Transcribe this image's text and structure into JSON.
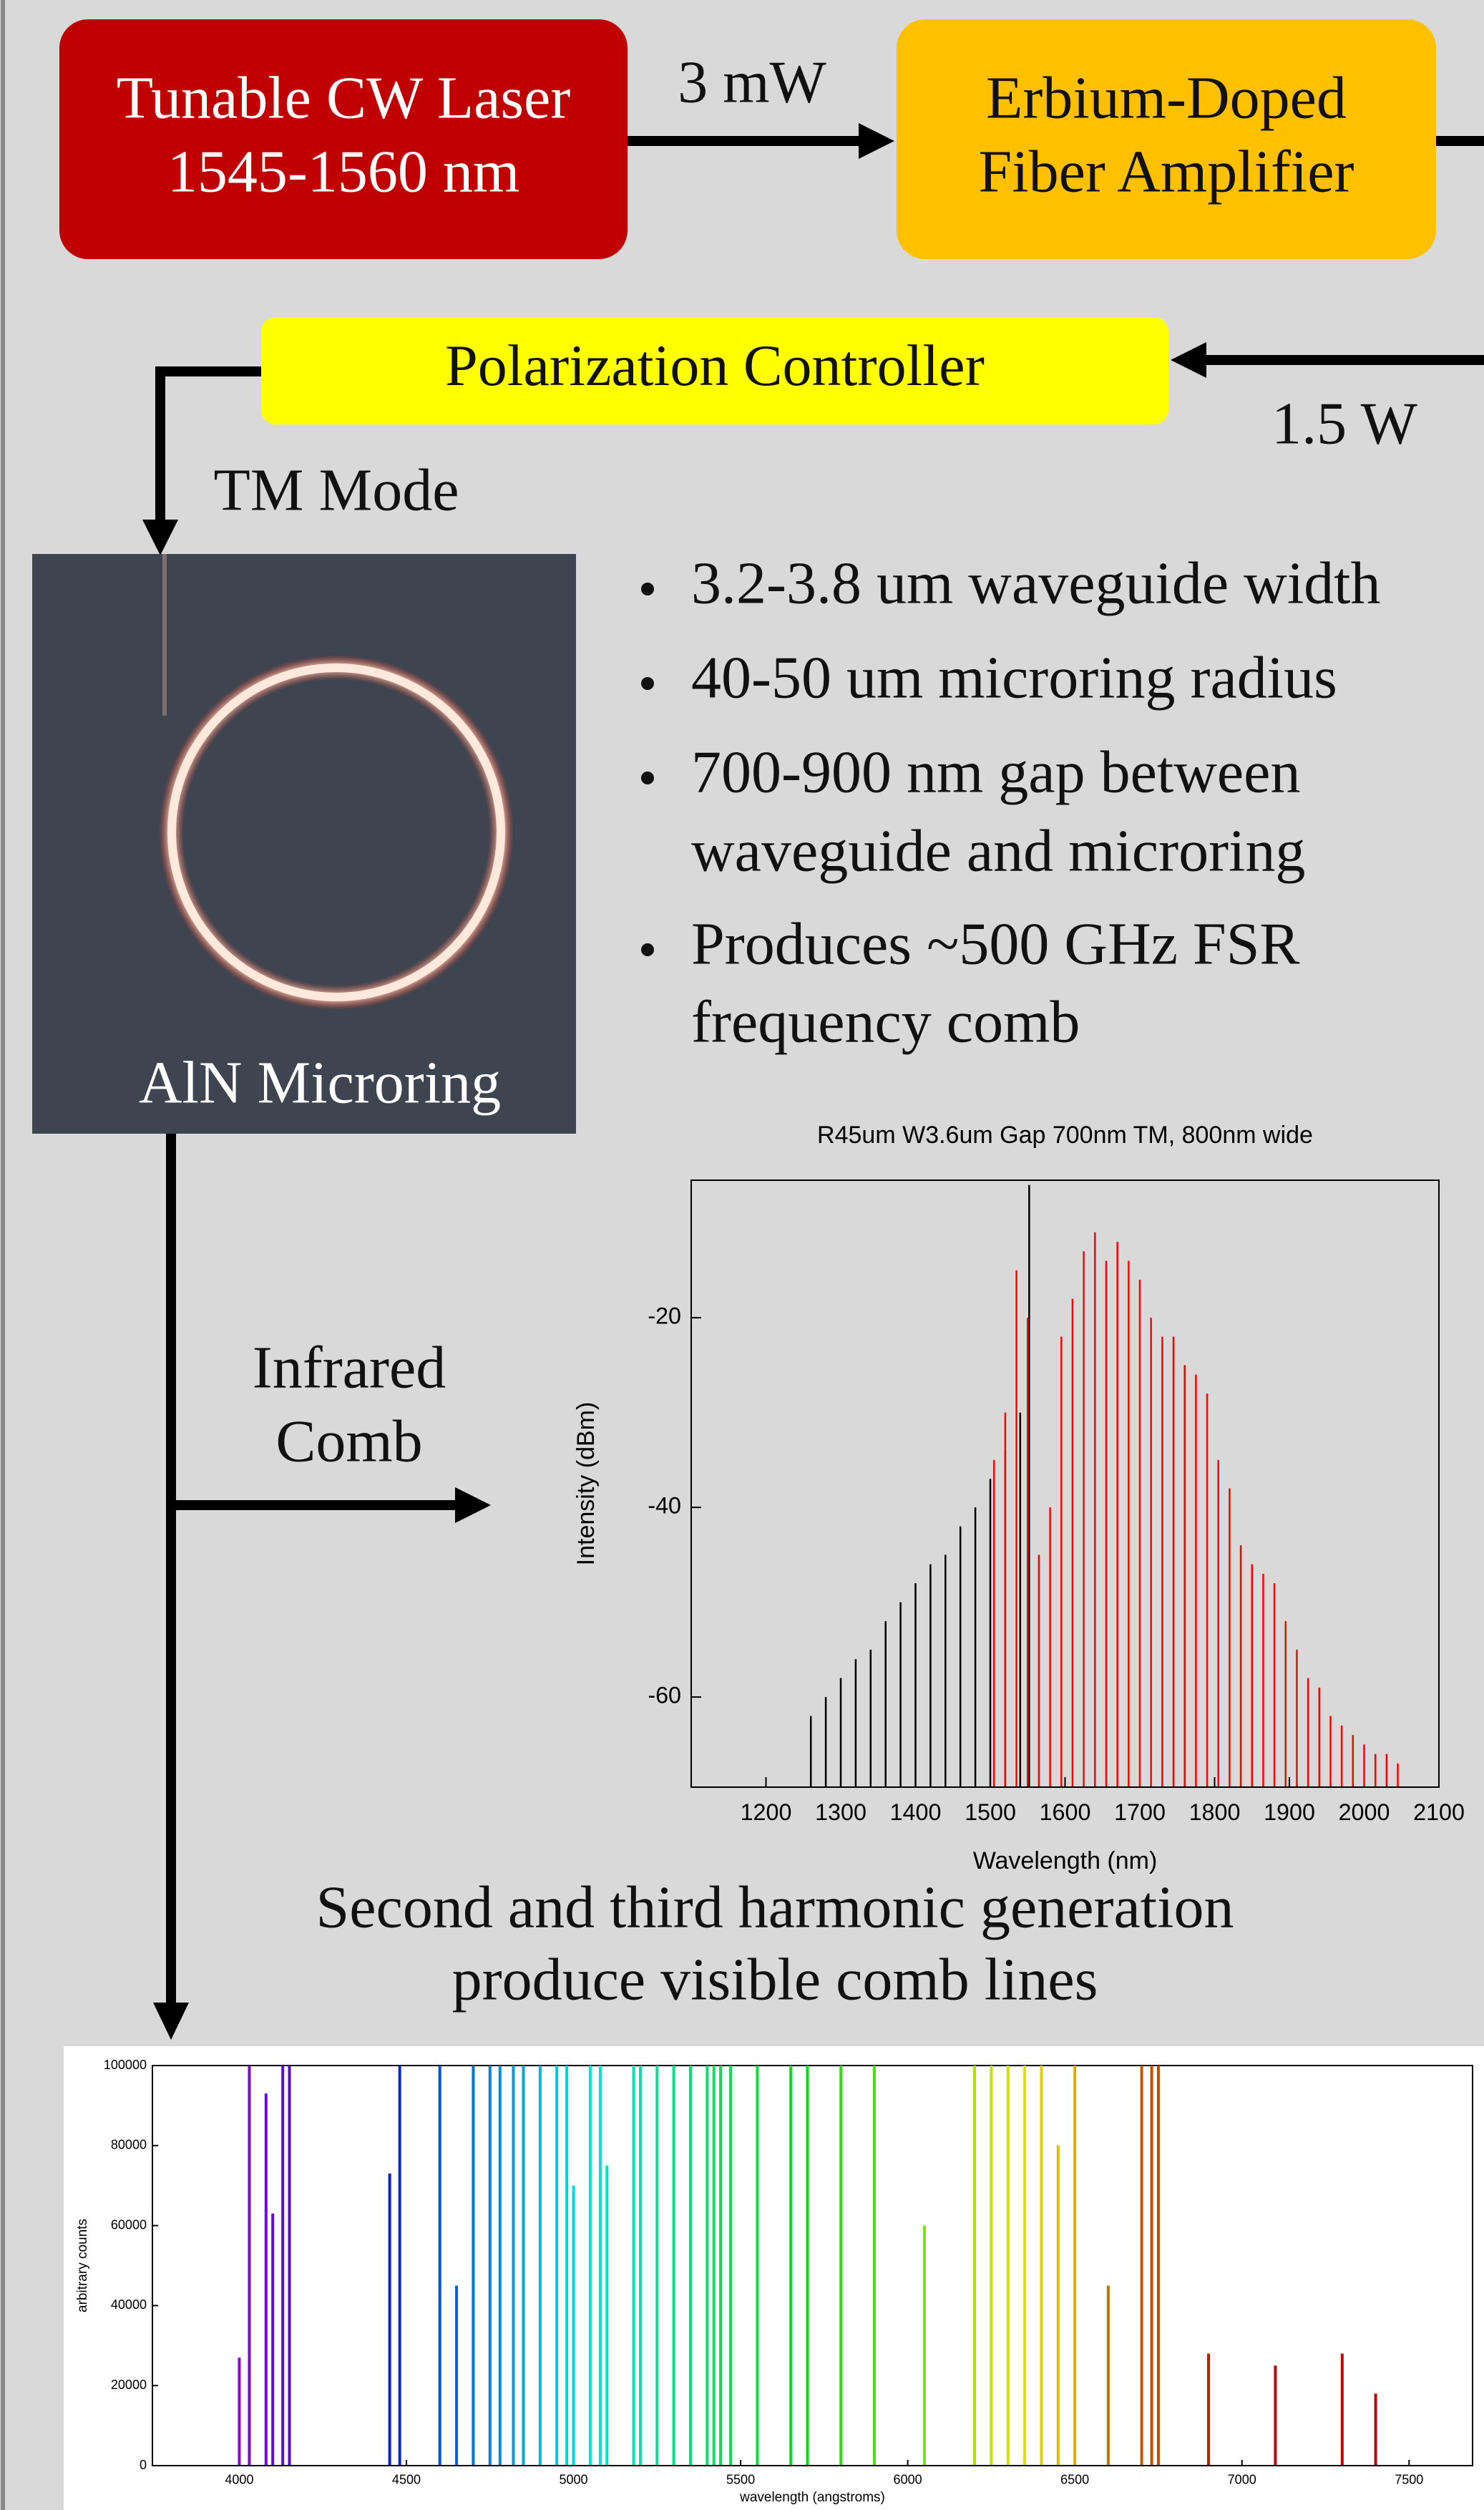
{
  "diagram": {
    "laser": [
      "Tunable CW Laser",
      "1545-1560 nm"
    ],
    "amplifier": [
      "Erbium-Doped",
      "Fiber Amplifier"
    ],
    "laser_power": "3 mW",
    "controller": "Polarization Controller",
    "amplified_power": "1.5 W",
    "mode": "TM Mode",
    "microring": "AlN Microring",
    "specs": [
      [
        "3.2-3.8 um waveguide width"
      ],
      [
        "40-50 um microring radius"
      ],
      [
        "700-900 nm gap between",
        "waveguide and microring"
      ],
      [
        "Produces ~500 GHz FSR",
        "frequency comb"
      ]
    ],
    "comb_label": [
      "Infrared",
      "Comb"
    ],
    "harmonics": [
      "Second and third harmonic generation",
      "produce visible comb lines"
    ]
  },
  "chart_data": [
    {
      "type": "comb",
      "title": "R45um W3.6um Gap 700nm TM, 800nm wide",
      "x_label": "Wavelength (nm)",
      "y_label": "Intensity (dBm)",
      "xlim": [
        1100,
        2100
      ],
      "xticks": [
        1200,
        1300,
        1400,
        1500,
        1600,
        1700,
        1800,
        1900,
        2000,
        2100
      ],
      "ylim": [
        -69.5,
        -5.5
      ],
      "yticks": [
        -60,
        -40,
        -20
      ],
      "series": [
        {
          "color": "#000000",
          "x": [
            1260,
            1280,
            1300,
            1320,
            1340,
            1360,
            1380,
            1400,
            1420,
            1440,
            1460,
            1480,
            1500,
            1520,
            1540,
            1552
          ],
          "values": [
            -62,
            -60,
            -58,
            -56,
            -55,
            -52,
            -50,
            -48,
            -46,
            -45,
            -42,
            -40,
            -37,
            -34,
            -30,
            -6
          ]
        },
        {
          "color": "#ff0000",
          "x": [
            1505,
            1520,
            1535,
            1550,
            1565,
            1580,
            1595,
            1610,
            1625,
            1640,
            1655,
            1670,
            1685,
            1700,
            1715,
            1730,
            1745,
            1760,
            1775,
            1790,
            1805,
            1820,
            1835,
            1850,
            1865,
            1880,
            1895,
            1910,
            1925,
            1940,
            1955,
            1970,
            1985,
            2000,
            2015,
            2030,
            2045
          ],
          "values": [
            -35,
            -30,
            -15,
            -20,
            -45,
            -40,
            -22,
            -18,
            -13,
            -11,
            -14,
            -12,
            -14,
            -16,
            -20,
            -22,
            -22,
            -25,
            -26,
            -28,
            -35,
            -38,
            -44,
            -46,
            -47,
            -48,
            -52,
            -55,
            -58,
            -59,
            -62,
            -63,
            -64,
            -65,
            -66,
            -66,
            -67
          ]
        }
      ]
    },
    {
      "type": "comb",
      "x_label": "wavelength (angstroms)",
      "y_label": "arbitrary counts",
      "color": "spectrum",
      "xlim": [
        3740,
        7690
      ],
      "xticks": [
        4000,
        4500,
        5000,
        5500,
        6000,
        6500,
        7000,
        7500
      ],
      "ylim": [
        0,
        100000
      ],
      "yticks": [
        0,
        20000,
        40000,
        60000,
        80000,
        100000
      ],
      "series": [
        {
          "x": [
            4000,
            4030,
            4080,
            4100,
            4130,
            4150,
            4450,
            4480,
            4600,
            4650,
            4700,
            4750,
            4780,
            4820,
            4850,
            4900,
            4950,
            4980,
            5000,
            5050,
            5080,
            5100,
            5180,
            5200,
            5250,
            5300,
            5350,
            5400,
            5420,
            5440,
            5470,
            5550,
            5650,
            5700,
            5800,
            5900,
            6050,
            6200,
            6250,
            6300,
            6350,
            6400,
            6450,
            6500,
            6600,
            6700,
            6730,
            6750,
            6900,
            7100,
            7300,
            7400
          ],
          "values": [
            27000,
            100000,
            93000,
            63000,
            100000,
            100000,
            73000,
            100000,
            100000,
            45000,
            100000,
            100000,
            100000,
            100000,
            100000,
            100000,
            100000,
            100000,
            70000,
            100000,
            100000,
            75000,
            100000,
            100000,
            100000,
            100000,
            100000,
            100000,
            100000,
            100000,
            100000,
            100000,
            100000,
            100000,
            100000,
            100000,
            60000,
            100000,
            100000,
            100000,
            100000,
            100000,
            80000,
            100000,
            45000,
            100000,
            100000,
            100000,
            28000,
            25000,
            28000,
            18000
          ]
        }
      ]
    }
  ]
}
